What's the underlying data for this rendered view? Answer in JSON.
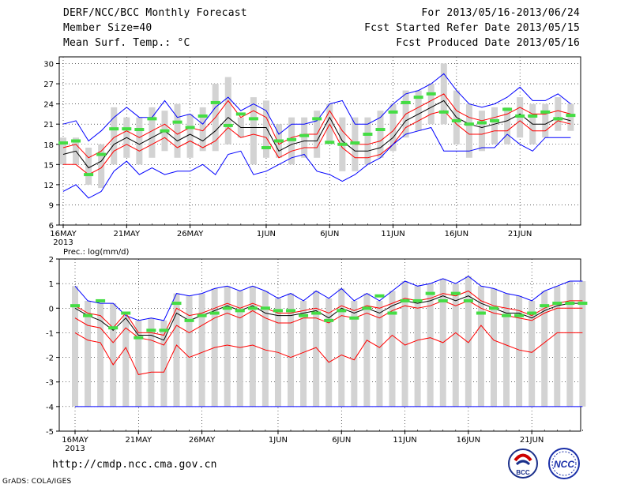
{
  "header": {
    "title": "DERF/NCC/BCC Monthly Forecast",
    "member": "Member Size=40",
    "variable": "Mean Surf. Temp.: °C",
    "period": "For 2013/05/16-2013/06/24",
    "refer": "Fcst Started Refer Date 2013/05/15",
    "produced": "Fcst Produced Date 2013/05/16"
  },
  "footer": {
    "url": "http://cmdp.ncc.cma.gov.cn",
    "credit": "GrADS: COLA/IGES",
    "logo_bcc": "BCC",
    "logo_ncc": "NCC"
  },
  "colors": {
    "max": "#0000ff",
    "min_band": "#ff0000",
    "mean": "#000000",
    "obs": "#44dd44",
    "box": "#d3d3d3"
  },
  "chart_data": [
    {
      "type": "line",
      "title": "Mean Surf. Temp.: °C",
      "ylim": [
        6,
        31
      ],
      "yticks": [
        6,
        9,
        12,
        15,
        18,
        21,
        24,
        27,
        30
      ],
      "xtick_labels": [
        {
          "day": 0,
          "label": "16MAY",
          "sub": "2013"
        },
        {
          "day": 5,
          "label": "21MAY"
        },
        {
          "day": 10,
          "label": "26MAY"
        },
        {
          "day": 16,
          "label": "1JUN"
        },
        {
          "day": 21,
          "label": "6JUN"
        },
        {
          "day": 26,
          "label": "11JUN"
        },
        {
          "day": 31,
          "label": "16JUN"
        },
        {
          "day": 36,
          "label": "21JUN"
        }
      ],
      "series": [
        {
          "name": "max",
          "values": [
            21,
            21.5,
            18.5,
            20,
            22,
            23.5,
            22,
            22,
            24.5,
            22,
            22.5,
            21,
            23.5,
            25,
            23,
            24,
            23,
            19.5,
            21,
            21,
            21.5,
            24,
            24.5,
            21,
            21,
            22,
            24,
            25.5,
            26,
            27,
            28.5,
            26,
            24,
            23.5,
            24,
            25,
            26.5,
            24.5,
            24.5,
            25.5,
            24
          ]
        },
        {
          "name": "upper",
          "values": [
            17.5,
            18,
            16,
            17,
            19,
            20,
            19,
            20,
            21,
            19.5,
            20.5,
            20,
            22,
            24.5,
            22,
            23,
            22,
            18,
            19,
            19.5,
            19.5,
            23,
            20,
            18,
            18,
            18.5,
            20,
            22.5,
            23.5,
            24.5,
            25.5,
            23,
            22,
            21.5,
            22,
            22.5,
            23.5,
            22.5,
            22.5,
            23,
            22.5
          ]
        },
        {
          "name": "mean",
          "values": [
            16.5,
            17,
            14.5,
            15.5,
            18,
            19,
            18,
            19,
            20,
            18.5,
            19.5,
            18.5,
            20,
            22,
            20.5,
            20.5,
            20.5,
            17,
            18,
            18.5,
            18.5,
            22,
            18.5,
            17,
            17,
            17.5,
            19,
            21.5,
            22.5,
            23.5,
            24.5,
            22,
            21,
            20.5,
            21,
            21.5,
            22.5,
            21,
            21,
            22,
            21.5
          ]
        },
        {
          "name": "lower",
          "values": [
            15,
            15,
            13.5,
            14.5,
            17,
            18,
            17,
            18,
            19,
            17.5,
            18.5,
            17.5,
            18.5,
            20.5,
            19,
            19.5,
            19,
            16,
            17,
            17.5,
            17.5,
            21,
            17.5,
            16,
            16,
            16.5,
            18,
            20.5,
            21.5,
            22.5,
            23,
            21,
            19.5,
            19.5,
            20,
            20,
            21.5,
            20,
            20,
            21.5,
            21
          ]
        },
        {
          "name": "min",
          "values": [
            11,
            12,
            10,
            11,
            14,
            15.5,
            13.5,
            14.5,
            13.5,
            14,
            14,
            15,
            13.5,
            16.5,
            17,
            13.5,
            14,
            15,
            16,
            16.5,
            14,
            13.5,
            12.5,
            13.5,
            15,
            16,
            18,
            19.5,
            20,
            20.5,
            17,
            17,
            17,
            17.5,
            17.5,
            19.5,
            18,
            17,
            19,
            19,
            19
          ]
        }
      ],
      "obs": [
        18.2,
        18.5,
        13.5,
        16.5,
        20.3,
        20.3,
        20.2,
        21.8,
        20,
        21.3,
        20.5,
        22.2,
        24.2,
        20.8,
        22.5,
        21.8,
        17.5,
        18.5,
        18.7,
        19.3,
        21.8,
        18.3,
        18,
        18.2,
        19.5,
        20.2,
        22.8,
        24.2,
        25,
        25.5,
        22.8,
        21.5,
        21,
        21.2,
        21.5,
        23.2,
        22.2,
        22.2,
        22.8,
        21.8,
        22.3
      ],
      "boxes": [
        [
          15,
          19
        ],
        [
          15,
          19
        ],
        [
          12,
          17.5
        ],
        [
          11.5,
          18
        ],
        [
          15,
          23.5
        ],
        [
          16,
          22
        ],
        [
          15,
          22
        ],
        [
          16,
          23.5
        ],
        [
          17,
          23
        ],
        [
          16,
          24
        ],
        [
          16,
          22.5
        ],
        [
          17,
          23.5
        ],
        [
          17,
          27
        ],
        [
          18,
          28
        ],
        [
          19,
          22
        ],
        [
          15,
          25
        ],
        [
          16,
          24.5
        ],
        [
          16,
          21
        ],
        [
          15,
          22
        ],
        [
          16,
          22
        ],
        [
          16,
          23
        ],
        [
          18,
          24
        ],
        [
          14,
          22
        ],
        [
          14,
          22
        ],
        [
          15,
          22
        ],
        [
          16,
          23
        ],
        [
          17,
          24
        ],
        [
          19,
          26
        ],
        [
          20,
          26
        ],
        [
          21,
          27
        ],
        [
          21,
          30
        ],
        [
          18,
          26
        ],
        [
          16,
          24
        ],
        [
          17,
          23
        ],
        [
          18,
          23.5
        ],
        [
          18,
          23.5
        ],
        [
          19,
          25
        ],
        [
          18,
          24
        ],
        [
          19,
          24
        ],
        [
          20,
          25
        ],
        [
          20,
          24
        ]
      ]
    },
    {
      "type": "line",
      "title": "Prec.: log(mm/d)",
      "ylim": [
        -5,
        2
      ],
      "yticks": [
        -5,
        -4,
        -3,
        -2,
        -1,
        0,
        1,
        2
      ],
      "xtick_labels": [
        {
          "day": 0,
          "label": "16MAY",
          "sub": "2013"
        },
        {
          "day": 5,
          "label": "21MAY"
        },
        {
          "day": 10,
          "label": "26MAY"
        },
        {
          "day": 16,
          "label": "1JUN"
        },
        {
          "day": 21,
          "label": "6JUN"
        },
        {
          "day": 26,
          "label": "11JUN"
        },
        {
          "day": 31,
          "label": "16JUN"
        },
        {
          "day": 36,
          "label": "21JUN"
        }
      ],
      "floor": -4,
      "series": [
        {
          "name": "max",
          "values": [
            0.9,
            0.3,
            0.2,
            0.2,
            -0.3,
            -0.5,
            -0.4,
            -0.5,
            0.6,
            0.5,
            0.6,
            0.8,
            0.9,
            0.7,
            0.9,
            0.7,
            0.4,
            0.6,
            0.3,
            0.7,
            0.4,
            0.8,
            0.3,
            0.6,
            0.3,
            0.7,
            1.1,
            0.9,
            1.0,
            1.2,
            1.0,
            1.3,
            0.9,
            0.8,
            0.6,
            0.5,
            0.3,
            0.7,
            0.9,
            1.1,
            1.1
          ]
        },
        {
          "name": "upper",
          "values": [
            0.1,
            -0.2,
            -0.3,
            -0.8,
            -0.2,
            -1.0,
            -1.0,
            -1.1,
            0.0,
            -0.3,
            -0.2,
            0.0,
            0.2,
            0.0,
            0.2,
            0.0,
            -0.2,
            -0.2,
            -0.1,
            0.0,
            -0.2,
            0.1,
            -0.1,
            0.1,
            0.0,
            0.2,
            0.4,
            0.3,
            0.4,
            0.6,
            0.5,
            0.7,
            0.3,
            0.1,
            0.0,
            -0.1,
            -0.3,
            0.0,
            0.2,
            0.3,
            0.3
          ]
        },
        {
          "name": "mean",
          "values": [
            0.0,
            -0.3,
            -0.5,
            -0.9,
            -0.4,
            -1.1,
            -1.1,
            -1.3,
            -0.2,
            -0.5,
            -0.3,
            -0.1,
            0.1,
            -0.1,
            0.1,
            -0.2,
            -0.3,
            -0.3,
            -0.2,
            -0.1,
            -0.4,
            0.0,
            -0.2,
            0.0,
            -0.2,
            0.1,
            0.3,
            0.2,
            0.3,
            0.5,
            0.3,
            0.5,
            0.2,
            0.0,
            -0.2,
            -0.2,
            -0.4,
            -0.1,
            0.1,
            0.2,
            0.2
          ]
        },
        {
          "name": "lower",
          "values": [
            -0.4,
            -0.7,
            -0.8,
            -1.4,
            -0.8,
            -1.2,
            -1.3,
            -1.5,
            -0.7,
            -1.0,
            -0.7,
            -0.4,
            -0.2,
            -0.4,
            -0.1,
            -0.4,
            -0.6,
            -0.6,
            -0.4,
            -0.4,
            -0.6,
            -0.3,
            -0.4,
            -0.2,
            -0.4,
            -0.1,
            0.1,
            0.0,
            0.1,
            0.3,
            0.1,
            0.3,
            0.0,
            -0.2,
            -0.3,
            -0.4,
            -0.5,
            -0.2,
            0.0,
            0.0,
            0.0
          ]
        },
        {
          "name": "min",
          "values": [
            -1.0,
            -1.3,
            -1.4,
            -2.3,
            -1.6,
            -2.7,
            -2.6,
            -2.6,
            -1.5,
            -2.0,
            -1.8,
            -1.6,
            -1.5,
            -1.6,
            -1.5,
            -1.7,
            -1.8,
            -2.0,
            -1.8,
            -1.6,
            -2.2,
            -1.9,
            -2.1,
            -1.3,
            -1.6,
            -1.1,
            -1.5,
            -1.3,
            -1.2,
            -1.4,
            -1.0,
            -1.4,
            -0.7,
            -1.3,
            -1.5,
            -1.7,
            -1.8,
            -1.4,
            -1.0,
            -1.0,
            -1.0
          ]
        }
      ],
      "obs": [
        0.1,
        -0.3,
        0.3,
        -0.8,
        -0.2,
        -1.2,
        -0.9,
        -0.9,
        0.2,
        -0.5,
        -0.3,
        -0.2,
        0.0,
        -0.1,
        0.0,
        0.0,
        -0.1,
        -0.1,
        -0.3,
        -0.2,
        -0.5,
        -0.1,
        -0.4,
        0.0,
        0.5,
        -0.2,
        0.3,
        0.3,
        0.6,
        0.3,
        0.6,
        0.3,
        -0.2,
        0.0,
        -0.3,
        -0.3,
        -0.2,
        0.1,
        0.2,
        0.2,
        0.2
      ]
    }
  ]
}
